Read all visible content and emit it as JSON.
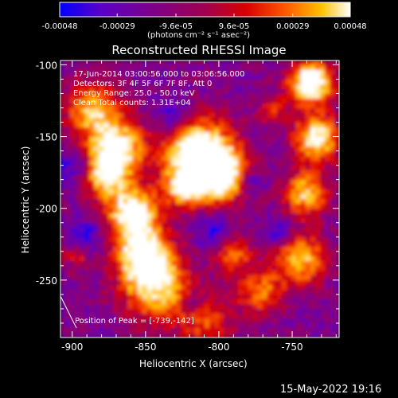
{
  "colorbar": {
    "tick_labels": [
      "-0.00048",
      "-0.00029",
      "-9.6e-05",
      "9.6e-05",
      "0.00029",
      "0.00048"
    ],
    "tick_values": [
      -0.00048,
      -0.00029,
      -9.6e-05,
      9.6e-05,
      0.00029,
      0.00048
    ],
    "range": [
      -0.00048,
      0.00048
    ],
    "unit_label": "(photons cm⁻² s⁻¹ asec⁻²)",
    "colors": [
      "#0000ff",
      "#5a00c8",
      "#7a0090",
      "#a00050",
      "#d80000",
      "#ff5a00",
      "#ffc000",
      "#ffffff"
    ]
  },
  "title": "Reconstructed RHESSI Image",
  "annotations": {
    "line1": "17-Jun-2014 03:00:56.000 to 03:06:56.000",
    "line2": "Detectors: 3F 4F 5F 6F 7F 8F, Att 0",
    "line3": "Energy Range: 25.0 - 50.0 keV",
    "line4": "Clean    Total counts: 1.31E+04",
    "peak": "Position of Peak = [-739,-142]"
  },
  "axes": {
    "xlabel": "Heliocentric X (arcsec)",
    "ylabel": "Heliocentric Y (arcsec)",
    "xticks": [
      "-900",
      "-850",
      "-800",
      "-750"
    ],
    "xtick_values": [
      -900,
      -850,
      -800,
      -750
    ],
    "yticks": [
      "-100",
      "-150",
      "-200",
      "-250"
    ],
    "ytick_values": [
      -100,
      -150,
      -200,
      -250
    ],
    "xlim": [
      -908,
      -718
    ],
    "ylim": [
      -290,
      -97
    ]
  },
  "footer_date": "15-May-2022 19:16"
}
